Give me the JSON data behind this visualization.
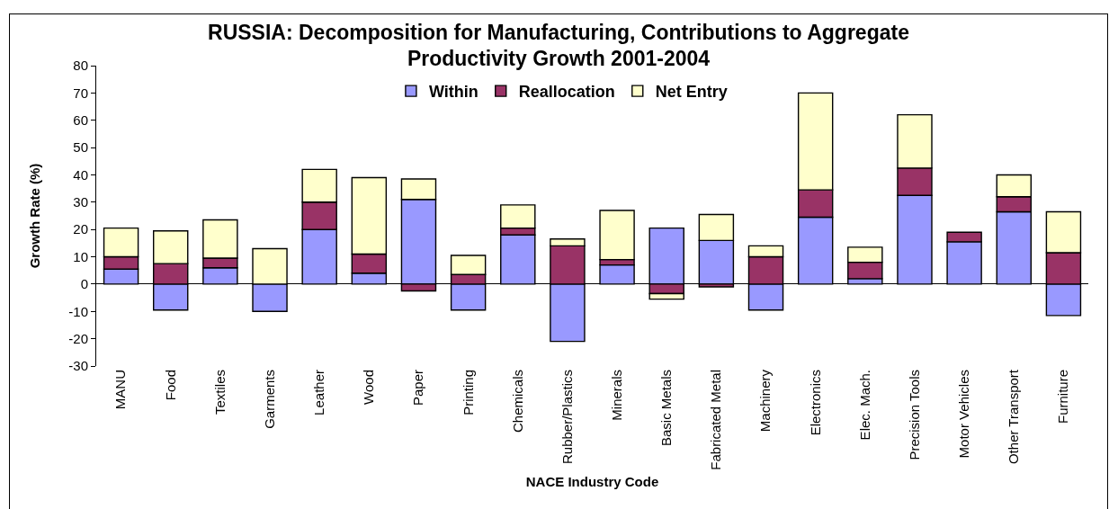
{
  "chart_data": {
    "type": "bar",
    "title": "RUSSIA: Decomposition for Manufacturing, Contributions to Aggregate Productivity Growth 2001-2004",
    "xlabel": "NACE Industry Code",
    "ylabel": "Growth Rate (%)",
    "categories": [
      "MANU",
      "Food",
      "Textiles",
      "Garments",
      "Leather",
      "Wood",
      "Paper",
      "Printing",
      "Chemicals",
      "Rubber/Plastics",
      "Minerals",
      "Basic Metals",
      "Fabricated Metal",
      "Machinery",
      "Electronics",
      "Elec. Mach.",
      "Precision Tools",
      "Motor Vehicles",
      "Other Transport",
      "Furniture"
    ],
    "series": [
      {
        "name": "Within",
        "color": "#9999ff",
        "values": [
          5.5,
          -9.5,
          6,
          -10,
          20,
          4,
          31,
          -9.5,
          18,
          -21,
          7,
          20.5,
          16,
          -9.5,
          24.5,
          2,
          32.5,
          15.5,
          26.5,
          -11.5
        ]
      },
      {
        "name": "Reallocation",
        "color": "#993366",
        "values": [
          4.5,
          7.5,
          3.5,
          null,
          10,
          7,
          -2.5,
          3.5,
          2.5,
          14,
          2,
          -3.5,
          -1,
          10,
          10,
          6,
          10,
          3.5,
          5.5,
          11.5
        ]
      },
      {
        "name": "Net Entry",
        "color": "#ffffcc",
        "values": [
          10.5,
          12,
          14,
          13,
          12,
          28,
          7.5,
          7,
          8.5,
          2.5,
          18,
          -2,
          9.5,
          4,
          35.5,
          5.5,
          19.5,
          null,
          8,
          15
        ]
      }
    ],
    "stacked": true,
    "ylim": [
      -30,
      80
    ],
    "yticks": [
      -30,
      -20,
      -10,
      0,
      10,
      20,
      30,
      40,
      50,
      60,
      70,
      80
    ],
    "legend": "top"
  }
}
